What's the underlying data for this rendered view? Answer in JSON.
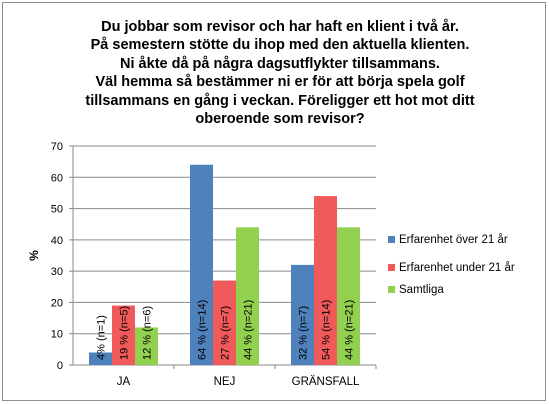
{
  "chart_data": {
    "type": "bar",
    "title_lines": [
      "Du jobbar som revisor och har haft en klient i två år.",
      "På semestern stötte du ihop med den aktuella klienten.",
      "Ni åkte då på några dagsutflykter tillsammans.",
      "Väl hemma så bestämmer ni er för att börja spela golf",
      "tillsammans en gång i veckan. Föreligger ett hot mot ditt",
      "oberoende som revisor?"
    ],
    "ylabel": "%",
    "xlabel": "",
    "ylim": [
      0,
      70
    ],
    "yticks": [
      0,
      10,
      20,
      30,
      40,
      50,
      60,
      70
    ],
    "grid": true,
    "legend_position": "right",
    "categories": [
      "JA",
      "NEJ",
      "GRÄNSFALL"
    ],
    "series": [
      {
        "name": "Erfarenhet över 21 år",
        "color": "#4f81bd",
        "values": [
          4,
          64,
          32
        ],
        "labels": [
          "4% (n=1)",
          "64 % (n=14)",
          "32 % (n=7)"
        ]
      },
      {
        "name": "Erfarenhet under 21 år",
        "color": "#f15a5a",
        "values": [
          19,
          27,
          54
        ],
        "labels": [
          "19 % (n=5)",
          "27 % (n=7)",
          "54 % (n=14)"
        ]
      },
      {
        "name": "Samtliga",
        "color": "#92d050",
        "values": [
          12,
          44,
          44
        ],
        "labels": [
          "12 % (n=6)",
          "44 % (n=21)",
          "44 % (n=21)"
        ]
      }
    ]
  }
}
